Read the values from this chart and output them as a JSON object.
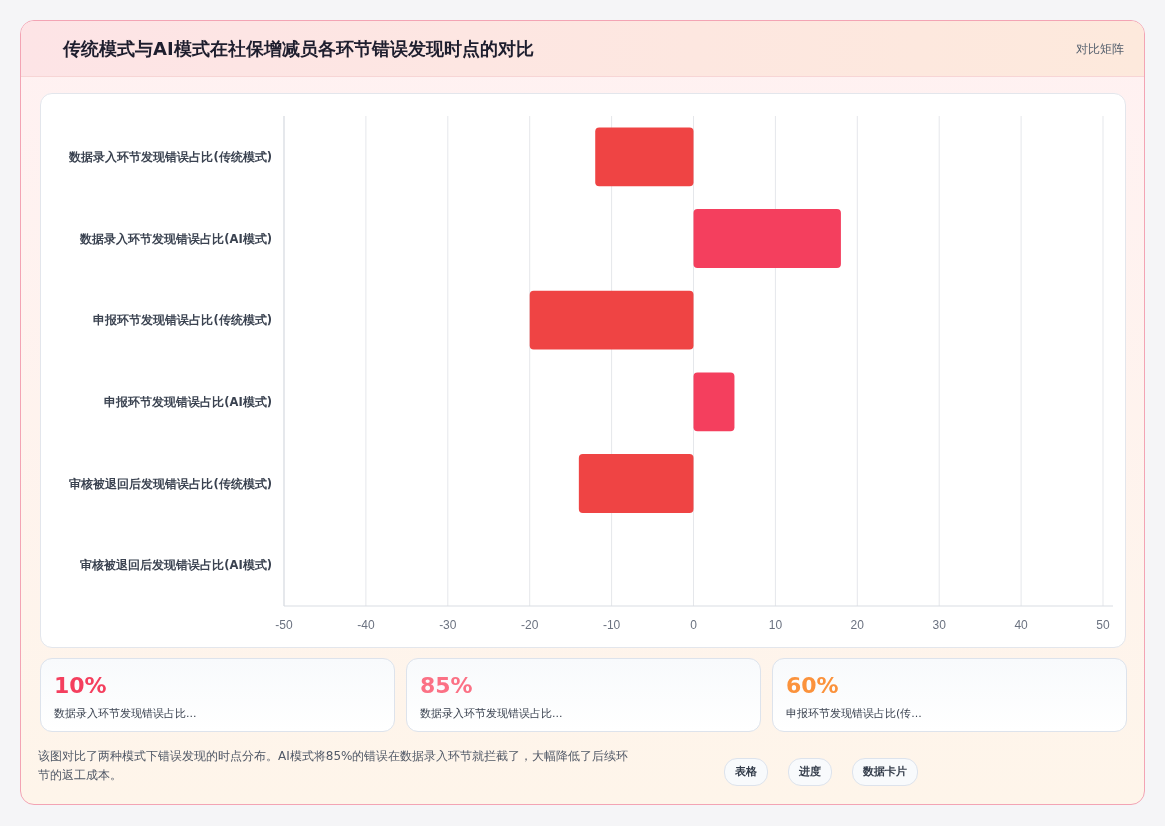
{
  "chart_data": [
    {
      "type": "bar",
      "orientation": "horizontal",
      "title": "传统模式与AI模式在社保增减员各环节错误发现时点的对比",
      "subtitle": "对比矩阵",
      "categories": [
        "数据录入环节发现错误占比(传统模式)",
        "数据录入环节发现错误占比(AI模式)",
        "申报环节发现错误占比(传统模式)",
        "申报环节发现错误占比(AI模式)",
        "审核被退回后发现错误占比(传统模式)",
        "审核被退回后发现错误占比(AI模式)"
      ],
      "values": [
        -12,
        18,
        -20,
        5,
        -14,
        0
      ],
      "colors": [
        "#ef4444",
        "#f43f5e",
        "#ef4444",
        "#f43f5e",
        "#ef4444",
        "#f43f5e"
      ],
      "xlim": [
        -50,
        50
      ],
      "xticks": [
        -50,
        -40,
        -30,
        -20,
        -10,
        0,
        10,
        20,
        30,
        40,
        50
      ],
      "grid": "x",
      "annotations": [
        "该图对比了两种模式下错误发现的时点分布。AI模式将85%的错误在数据录入环节就拦截了，大幅降低了后续环节的返工成本。",
        "表格",
        "进度",
        "数据卡片"
      ]
    },
    {
      "type": "other",
      "categories": [
        "数据录入环节发现错误占比...",
        "数据录入环节发现错误占比...",
        "申报环节发现错误占比(传..."
      ],
      "value_labels": [
        "10%",
        "85%",
        "60%"
      ]
    }
  ]
}
